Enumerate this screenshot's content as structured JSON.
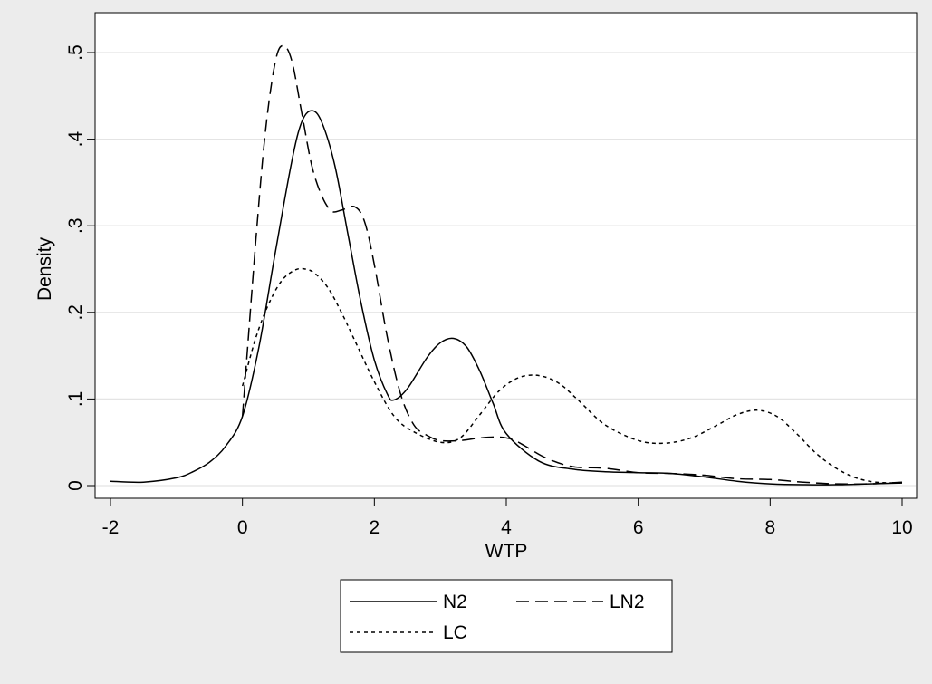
{
  "chart_data": {
    "type": "line",
    "xlabel": "WTP",
    "ylabel": "Density",
    "xlim": [
      -2,
      10
    ],
    "ylim": [
      0,
      0.5
    ],
    "x_ticks": [
      -2,
      0,
      2,
      4,
      6,
      8,
      10
    ],
    "x_tick_labels": [
      "-2",
      "0",
      "2",
      "4",
      "6",
      "8",
      "10"
    ],
    "y_ticks": [
      0,
      0.1,
      0.2,
      0.3,
      0.4,
      0.5
    ],
    "y_tick_labels": [
      "0",
      ".1",
      ".2",
      ".3",
      ".4",
      ".5"
    ],
    "grid": "horizontal",
    "legend_position": "bottom",
    "series": [
      {
        "name": "N2",
        "style": "solid",
        "x": [
          -2,
          -1.5,
          -1,
          -0.75,
          -0.5,
          -0.25,
          0,
          0.25,
          0.5,
          0.75,
          0.9,
          1.05,
          1.2,
          1.4,
          1.6,
          1.8,
          2.0,
          2.2,
          2.3,
          2.5,
          2.8,
          3.0,
          3.2,
          3.4,
          3.6,
          3.8,
          4.0,
          4.5,
          5,
          5.5,
          6,
          6.5,
          7,
          7.5,
          8,
          8.5,
          9,
          9.5,
          10
        ],
        "y": [
          0.005,
          0.004,
          0.009,
          0.016,
          0.027,
          0.046,
          0.08,
          0.16,
          0.27,
          0.375,
          0.42,
          0.433,
          0.42,
          0.37,
          0.29,
          0.21,
          0.145,
          0.105,
          0.099,
          0.112,
          0.148,
          0.165,
          0.17,
          0.16,
          0.132,
          0.095,
          0.06,
          0.028,
          0.019,
          0.016,
          0.015,
          0.014,
          0.01,
          0.005,
          0.002,
          0.001,
          0.001,
          0.002,
          0.003
        ]
      },
      {
        "name": "LN2",
        "style": "dashed",
        "x": [
          0,
          0.2,
          0.35,
          0.5,
          0.62,
          0.75,
          0.9,
          1.05,
          1.2,
          1.35,
          1.5,
          1.7,
          1.85,
          2.0,
          2.2,
          2.4,
          2.6,
          2.8,
          3.0,
          3.3,
          3.6,
          3.9,
          4.1,
          4.3,
          4.6,
          5,
          5.5,
          6,
          6.5,
          7,
          7.5,
          8,
          8.5,
          9,
          9.5,
          10
        ],
        "y": [
          0.08,
          0.28,
          0.41,
          0.49,
          0.508,
          0.49,
          0.43,
          0.37,
          0.335,
          0.317,
          0.318,
          0.322,
          0.305,
          0.255,
          0.17,
          0.105,
          0.07,
          0.058,
          0.052,
          0.052,
          0.055,
          0.056,
          0.053,
          0.045,
          0.032,
          0.022,
          0.02,
          0.015,
          0.014,
          0.012,
          0.008,
          0.007,
          0.004,
          0.002,
          0.002,
          0.004
        ]
      },
      {
        "name": "LC",
        "style": "dotted",
        "x": [
          0,
          0.2,
          0.4,
          0.6,
          0.8,
          0.95,
          1.1,
          1.3,
          1.5,
          1.7,
          2.0,
          2.3,
          2.6,
          3.0,
          3.3,
          3.6,
          3.9,
          4.2,
          4.5,
          4.8,
          5.1,
          5.5,
          6.0,
          6.4,
          6.8,
          7.2,
          7.5,
          7.8,
          8.1,
          8.4,
          8.7,
          9.0,
          9.3,
          9.6,
          10
        ],
        "y": [
          0.115,
          0.17,
          0.21,
          0.237,
          0.249,
          0.25,
          0.245,
          0.228,
          0.2,
          0.168,
          0.12,
          0.08,
          0.062,
          0.05,
          0.055,
          0.082,
          0.11,
          0.125,
          0.127,
          0.118,
          0.098,
          0.07,
          0.052,
          0.049,
          0.055,
          0.07,
          0.082,
          0.087,
          0.08,
          0.06,
          0.037,
          0.02,
          0.009,
          0.004,
          0.003
        ]
      }
    ]
  }
}
